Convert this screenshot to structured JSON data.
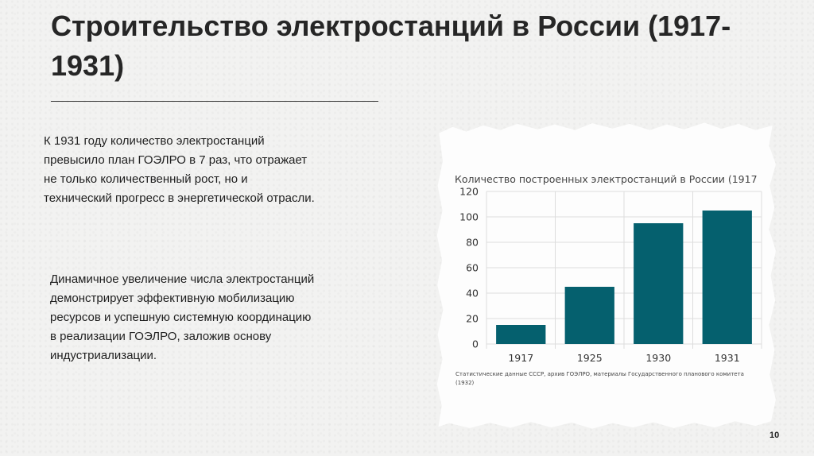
{
  "slide": {
    "title": "Строительство электростанций в России (1917-1931)",
    "paragraph_1": "К 1931 году количество электростанций\nпревысило план ГОЭЛРО в 7 раз, что отражает\nне только количественный рост, но и\nтехнический прогресс в энергетической отрасли.",
    "paragraph_2": "Динамичное увеличение числа электростанций\nдемонстрирует эффективную мобилизацию\nресурсов и успешную системную координацию\nв реализации ГОЭЛРО, заложив основу\nиндустриализации.",
    "source": "Статистические данные СССР, архив ГОЭЛРО, материалы Государственного планового комитета (1932)",
    "page_number": "10"
  },
  "chart_data": {
    "type": "bar",
    "title": "Количество построенных электростанций в России (1917",
    "categories": [
      "1917",
      "1925",
      "1930",
      "1931"
    ],
    "values": [
      15,
      45,
      95,
      105
    ],
    "ylim": [
      0,
      120
    ],
    "yticks": [
      0,
      20,
      40,
      60,
      80,
      100,
      120
    ],
    "xlabel": "",
    "ylabel": "",
    "grid": true,
    "bar_color": "#05606e",
    "grid_color": "#dddddd"
  }
}
